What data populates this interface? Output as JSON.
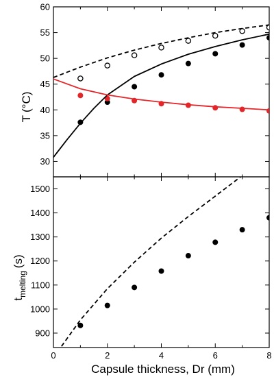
{
  "chart_data": [
    {
      "type": "scatter",
      "xlim": [
        0,
        8
      ],
      "ylim": [
        27,
        60
      ],
      "x_ticks": [
        "0",
        "2",
        "4",
        "6",
        "8"
      ],
      "y_ticks": [
        "30",
        "35",
        "40",
        "45",
        "50",
        "55",
        "60"
      ],
      "ylabel_main": "T",
      "ylabel_unit": "(°C)",
      "series": [
        {
          "style": "open-circle",
          "color": "#000000",
          "x": [
            1,
            2,
            3,
            4,
            5,
            6,
            7,
            8
          ],
          "y": [
            46.1,
            48.6,
            50.6,
            52.1,
            53.4,
            54.4,
            55.3,
            56.0
          ]
        },
        {
          "style": "filled-circle",
          "color": "#000000",
          "x": [
            1,
            2,
            3,
            4,
            5,
            6,
            7,
            8
          ],
          "y": [
            37.6,
            41.5,
            44.5,
            46.8,
            49.0,
            50.9,
            52.6,
            54.0
          ]
        },
        {
          "style": "filled-circle",
          "color": "#e3262a",
          "x": [
            1,
            2,
            3,
            4,
            5,
            6,
            7,
            8
          ],
          "y": [
            42.8,
            42.2,
            41.8,
            41.2,
            40.9,
            40.4,
            40.1,
            39.8
          ]
        },
        {
          "style": "dashed-line",
          "color": "#000000",
          "x": [
            0,
            1,
            2,
            3,
            4,
            5,
            6,
            7,
            8
          ],
          "y": [
            46.3,
            48.3,
            50.1,
            51.6,
            52.9,
            54.0,
            55.0,
            55.8,
            56.5
          ]
        },
        {
          "style": "solid-line",
          "color": "#000000",
          "x": [
            0,
            0.5,
            1,
            1.5,
            2,
            3,
            4,
            5,
            6,
            7,
            8
          ],
          "y": [
            30.8,
            34.2,
            37.4,
            40.3,
            42.9,
            46.5,
            48.9,
            50.8,
            52.3,
            53.6,
            54.7
          ]
        },
        {
          "style": "solid-line",
          "color": "#e3262a",
          "x": [
            0,
            1,
            2,
            3,
            4,
            5,
            6,
            7,
            8
          ],
          "y": [
            46.0,
            44.1,
            42.9,
            42.1,
            41.5,
            41.0,
            40.6,
            40.3,
            40.0
          ]
        }
      ]
    },
    {
      "type": "scatter",
      "xlim": [
        0,
        8
      ],
      "ylim": [
        840,
        1550
      ],
      "x_ticks": [
        "0",
        "2",
        "4",
        "6",
        "8"
      ],
      "y_ticks": [
        "900",
        "1000",
        "1100",
        "1200",
        "1300",
        "1400",
        "1500"
      ],
      "ylabel_main": "t",
      "ylabel_sub": "melting",
      "ylabel_unit": "(s)",
      "xlabel": "Capsule thickness, Dr (mm)",
      "series": [
        {
          "style": "filled-circle",
          "color": "#000000",
          "x": [
            1,
            2,
            3,
            4,
            5,
            6,
            7,
            8
          ],
          "y": [
            932,
            1015,
            1090,
            1158,
            1222,
            1278,
            1330,
            1380
          ]
        },
        {
          "style": "dashed-line",
          "color": "#000000",
          "x": [
            0.3,
            1,
            2,
            3,
            4,
            5,
            6,
            7
          ],
          "y": [
            845,
            955,
            1085,
            1195,
            1295,
            1385,
            1470,
            1555
          ]
        }
      ]
    }
  ]
}
